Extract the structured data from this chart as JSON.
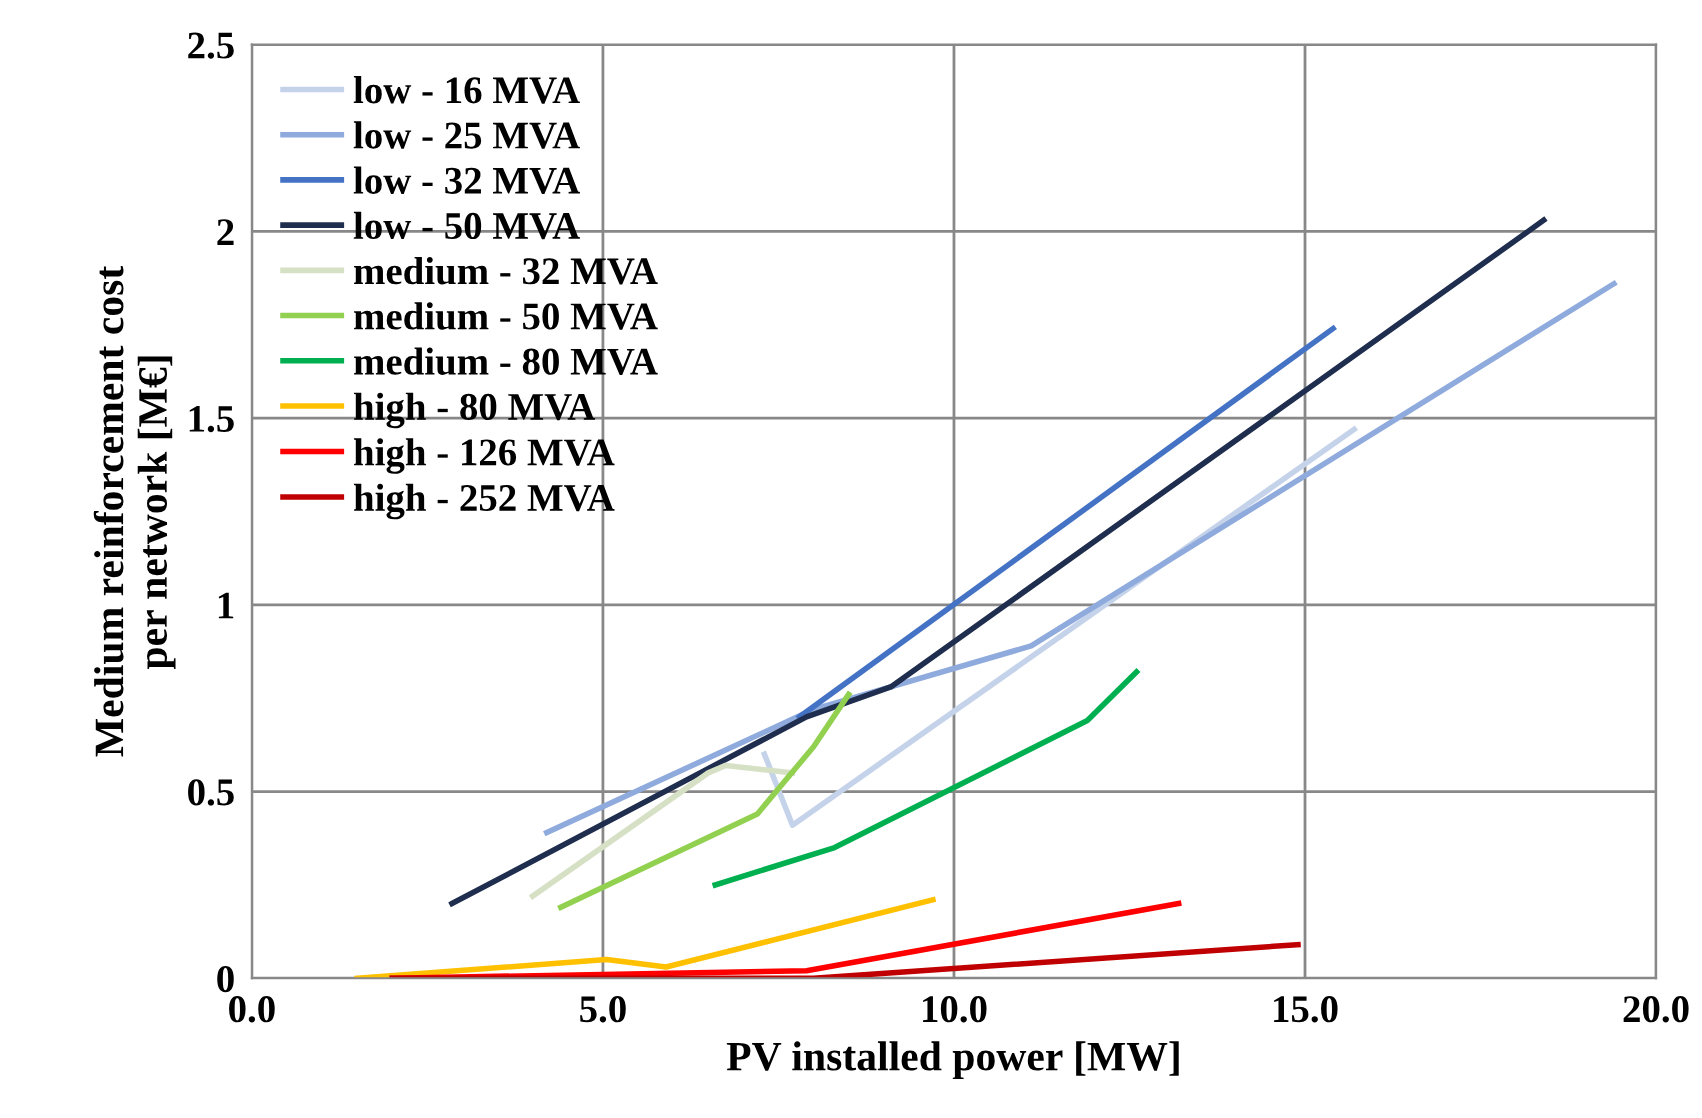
{
  "chart_data": {
    "type": "line",
    "xlabel": "PV installed power [MW]",
    "ylabel": "Medium reinforcement cost\nper network [M€]",
    "xlim": [
      0,
      20
    ],
    "xticks": [
      {
        "value": 0,
        "label": "0.0"
      },
      {
        "value": 5,
        "label": "5.0"
      },
      {
        "value": 10,
        "label": "10.0"
      },
      {
        "value": 15,
        "label": "15.0"
      },
      {
        "value": 20,
        "label": "20.0"
      }
    ],
    "ylim": [
      0,
      2.5
    ],
    "yticks": [
      0,
      0.5,
      1,
      1.5,
      2,
      2.5
    ],
    "grid": true,
    "legend": "top left",
    "marker": "none",
    "line_style": "solid",
    "series": [
      {
        "name": "low - 16 MVA",
        "color": "#c5d3ea",
        "x": [
          7.3,
          7.7,
          15.7
        ],
        "values": [
          0.6,
          0.41,
          1.47
        ]
      },
      {
        "name": "low - 25 MVA",
        "color": "#8faadc",
        "x": [
          4.2,
          8.0,
          11.1,
          19.4
        ],
        "values": [
          0.39,
          0.72,
          0.89,
          1.86
        ]
      },
      {
        "name": "low - 32 MVA",
        "color": "#4472c4",
        "x": [
          7.8,
          15.4
        ],
        "values": [
          0.7,
          1.74
        ]
      },
      {
        "name": "low - 50 MVA",
        "color": "#1f2d4e",
        "x": [
          2.85,
          7.9,
          9.1,
          18.4
        ],
        "values": [
          0.2,
          0.7,
          0.78,
          2.03
        ]
      },
      {
        "name": "medium - 32 MVA",
        "color": "#d6e0c4",
        "x": [
          4.0,
          6.5,
          6.75,
          7.7
        ],
        "values": [
          0.22,
          0.55,
          0.57,
          0.55
        ]
      },
      {
        "name": "medium - 50 MVA",
        "color": "#92d050",
        "x": [
          4.4,
          7.2,
          8.0,
          8.5
        ],
        "values": [
          0.19,
          0.44,
          0.62,
          0.76
        ]
      },
      {
        "name": "medium - 80 MVA",
        "color": "#00b050",
        "x": [
          6.6,
          8.3,
          11.9,
          12.6
        ],
        "values": [
          0.25,
          0.35,
          0.69,
          0.82
        ]
      },
      {
        "name": "high - 80 MVA",
        "color": "#ffc000",
        "x": [
          1.5,
          5.05,
          5.9,
          9.7
        ],
        "values": [
          0.0,
          0.05,
          0.03,
          0.21
        ]
      },
      {
        "name": "high - 126 MVA",
        "color": "#ff0000",
        "x": [
          2.0,
          7.9,
          13.2
        ],
        "values": [
          0.0,
          0.02,
          0.2
        ]
      },
      {
        "name": "high - 252 MVA",
        "color": "#c00000",
        "x": [
          2.0,
          8.0,
          14.9
        ],
        "values": [
          0.0,
          0.0,
          0.09
        ]
      }
    ]
  }
}
